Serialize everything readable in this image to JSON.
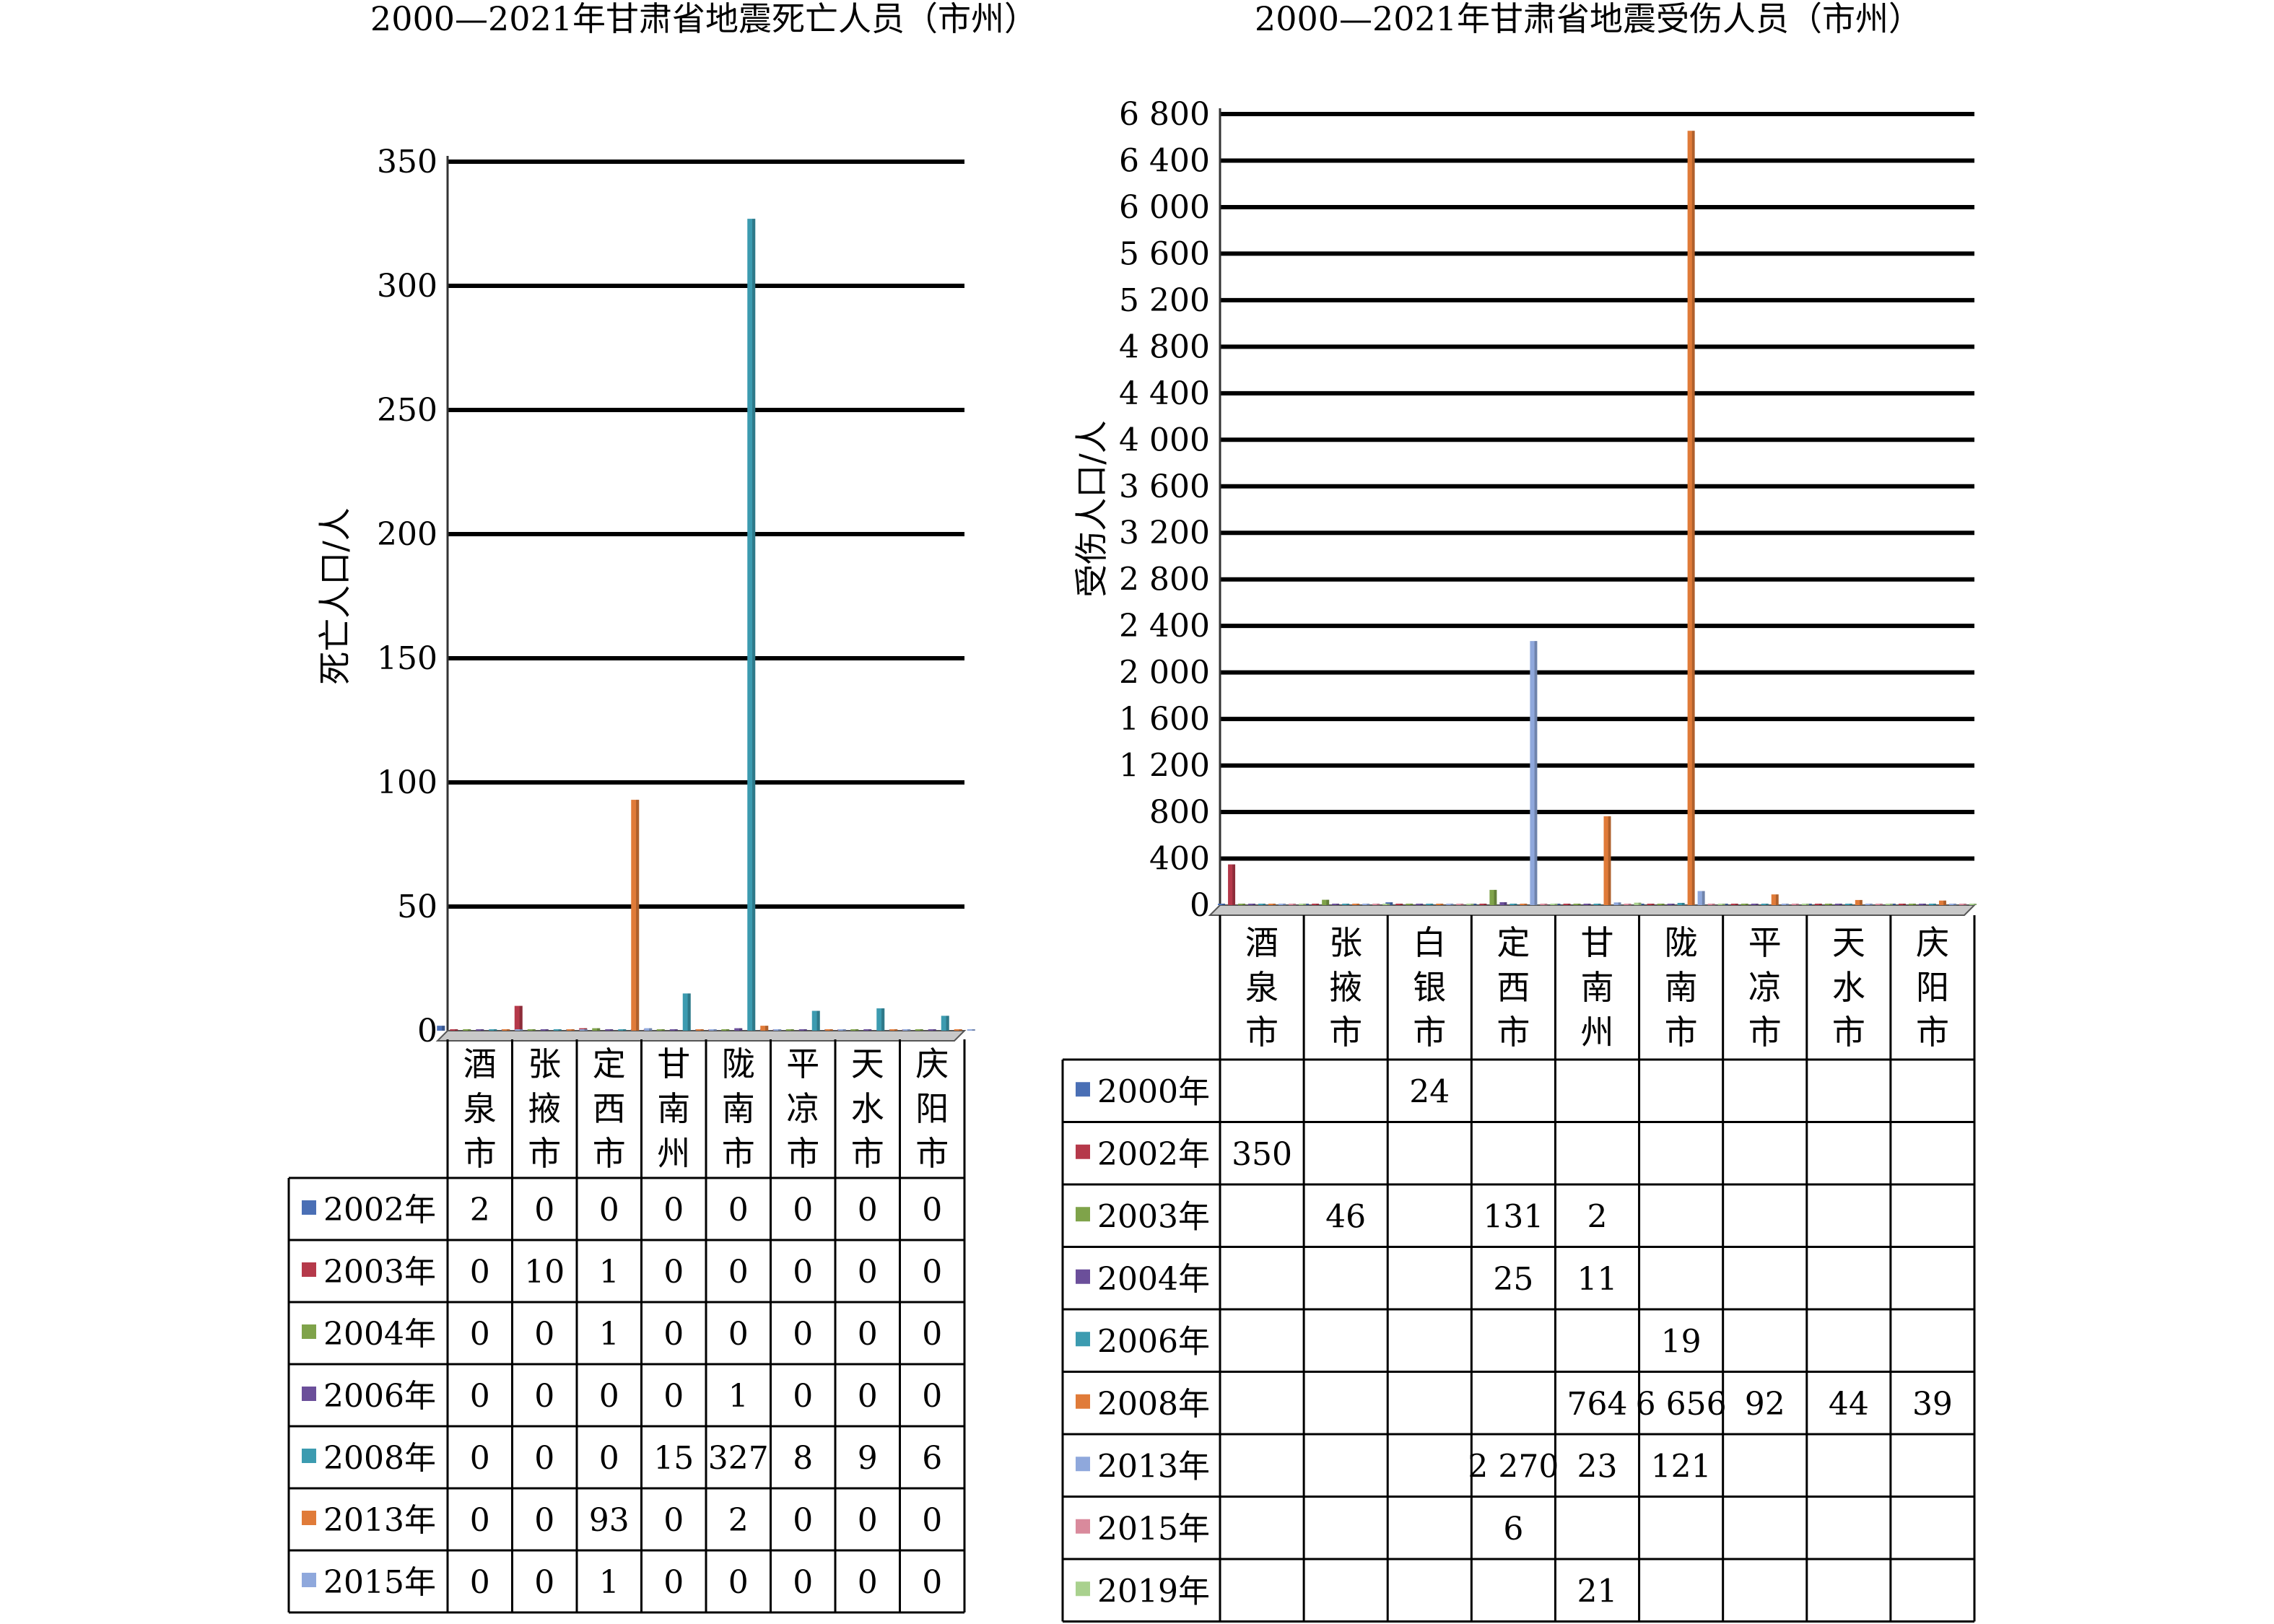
{
  "chart_data": [
    {
      "type": "bar",
      "title": "2000—2021年甘肃省地震死亡人员（市州）",
      "ylabel": "死亡人口/人",
      "xlabel": "",
      "ylim": [
        0,
        350
      ],
      "yticks": [
        "0",
        "50",
        "100",
        "150",
        "200",
        "250",
        "300",
        "350"
      ],
      "grid": true,
      "categories": [
        "酒泉市",
        "张掖市",
        "定西市",
        "甘南州",
        "陇南市",
        "平凉市",
        "天水市",
        "庆阳市"
      ],
      "series": [
        {
          "name": "2002年",
          "color": "#4a6fb5",
          "values": [
            2,
            0,
            0,
            0,
            0,
            0,
            0,
            0
          ],
          "labels": [
            "2",
            "0",
            "0",
            "0",
            "0",
            "0",
            "0",
            "0"
          ]
        },
        {
          "name": "2003年",
          "color": "#b5394a",
          "values": [
            0,
            10,
            1,
            0,
            0,
            0,
            0,
            0
          ],
          "labels": [
            "0",
            "10",
            "1",
            "0",
            "0",
            "0",
            "0",
            "0"
          ]
        },
        {
          "name": "2004年",
          "color": "#7fa34a",
          "values": [
            0,
            0,
            1,
            0,
            0,
            0,
            0,
            0
          ],
          "labels": [
            "0",
            "0",
            "1",
            "0",
            "0",
            "0",
            "0",
            "0"
          ]
        },
        {
          "name": "2006年",
          "color": "#6b4f9a",
          "values": [
            0,
            0,
            0,
            0,
            1,
            0,
            0,
            0
          ],
          "labels": [
            "0",
            "0",
            "0",
            "0",
            "1",
            "0",
            "0",
            "0"
          ]
        },
        {
          "name": "2008年",
          "color": "#3c9bb0",
          "values": [
            0,
            0,
            0,
            15,
            327,
            8,
            9,
            6
          ],
          "labels": [
            "0",
            "0",
            "0",
            "15",
            "327",
            "8",
            "9",
            "6"
          ]
        },
        {
          "name": "2013年",
          "color": "#e07b39",
          "values": [
            0,
            0,
            93,
            0,
            2,
            0,
            0,
            0
          ],
          "labels": [
            "0",
            "0",
            "93",
            "0",
            "2",
            "0",
            "0",
            "0"
          ]
        },
        {
          "name": "2015年",
          "color": "#8fa8dc",
          "values": [
            0,
            0,
            1,
            0,
            0,
            0,
            0,
            0
          ],
          "labels": [
            "0",
            "0",
            "1",
            "0",
            "0",
            "0",
            "0",
            "0"
          ]
        }
      ]
    },
    {
      "type": "bar",
      "title": "2000—2021年甘肃省地震受伤人员（市州）",
      "ylabel": "受伤人口/人",
      "xlabel": "",
      "ylim": [
        0,
        6800
      ],
      "yticks": [
        "0",
        "400",
        "800",
        "1 200",
        "1 600",
        "2 000",
        "2 400",
        "2 800",
        "3 200",
        "3 600",
        "4 000",
        "4 400",
        "4 800",
        "5 200",
        "5 600",
        "6 000",
        "6 400",
        "6 800"
      ],
      "grid": true,
      "categories": [
        "酒泉市",
        "张掖市",
        "白银市",
        "定西市",
        "甘南州",
        "陇南市",
        "平凉市",
        "天水市",
        "庆阳市"
      ],
      "series": [
        {
          "name": "2000年",
          "color": "#4a6fb5",
          "values": [
            0,
            0,
            24,
            0,
            0,
            0,
            0,
            0,
            0
          ],
          "labels": [
            "",
            "",
            "24",
            "",
            "",
            "",
            "",
            "",
            ""
          ]
        },
        {
          "name": "2002年",
          "color": "#b5394a",
          "values": [
            350,
            0,
            0,
            0,
            0,
            0,
            0,
            0,
            0
          ],
          "labels": [
            "350",
            "",
            "",
            "",
            "",
            "",
            "",
            "",
            ""
          ]
        },
        {
          "name": "2003年",
          "color": "#7fa34a",
          "values": [
            0,
            46,
            0,
            131,
            2,
            0,
            0,
            0,
            0
          ],
          "labels": [
            "",
            "46",
            "",
            "131",
            "2",
            "",
            "",
            "",
            ""
          ]
        },
        {
          "name": "2004年",
          "color": "#6b4f9a",
          "values": [
            0,
            0,
            0,
            25,
            11,
            0,
            0,
            0,
            0
          ],
          "labels": [
            "",
            "",
            "",
            "25",
            "11",
            "",
            "",
            "",
            ""
          ]
        },
        {
          "name": "2006年",
          "color": "#3c9bb0",
          "values": [
            0,
            0,
            0,
            0,
            0,
            19,
            0,
            0,
            0
          ],
          "labels": [
            "",
            "",
            "",
            "",
            "",
            "19",
            "",
            "",
            ""
          ]
        },
        {
          "name": "2008年",
          "color": "#e07b39",
          "values": [
            0,
            0,
            0,
            0,
            764,
            6656,
            92,
            44,
            39
          ],
          "labels": [
            "",
            "",
            "",
            "",
            "764",
            "6 656",
            "92",
            "44",
            "39"
          ]
        },
        {
          "name": "2013年",
          "color": "#8fa8dc",
          "values": [
            0,
            0,
            0,
            2270,
            23,
            121,
            0,
            0,
            0
          ],
          "labels": [
            "",
            "",
            "",
            "2 270",
            "23",
            "121",
            "",
            "",
            ""
          ]
        },
        {
          "name": "2015年",
          "color": "#d98a9c",
          "values": [
            0,
            0,
            0,
            6,
            0,
            0,
            0,
            0,
            0
          ],
          "labels": [
            "",
            "",
            "",
            "6",
            "",
            "",
            "",
            "",
            ""
          ]
        },
        {
          "name": "2019年",
          "color": "#a9d18e",
          "values": [
            0,
            0,
            0,
            0,
            21,
            0,
            0,
            0,
            0
          ],
          "labels": [
            "",
            "",
            "",
            "",
            "21",
            "",
            "",
            "",
            ""
          ]
        }
      ]
    }
  ]
}
